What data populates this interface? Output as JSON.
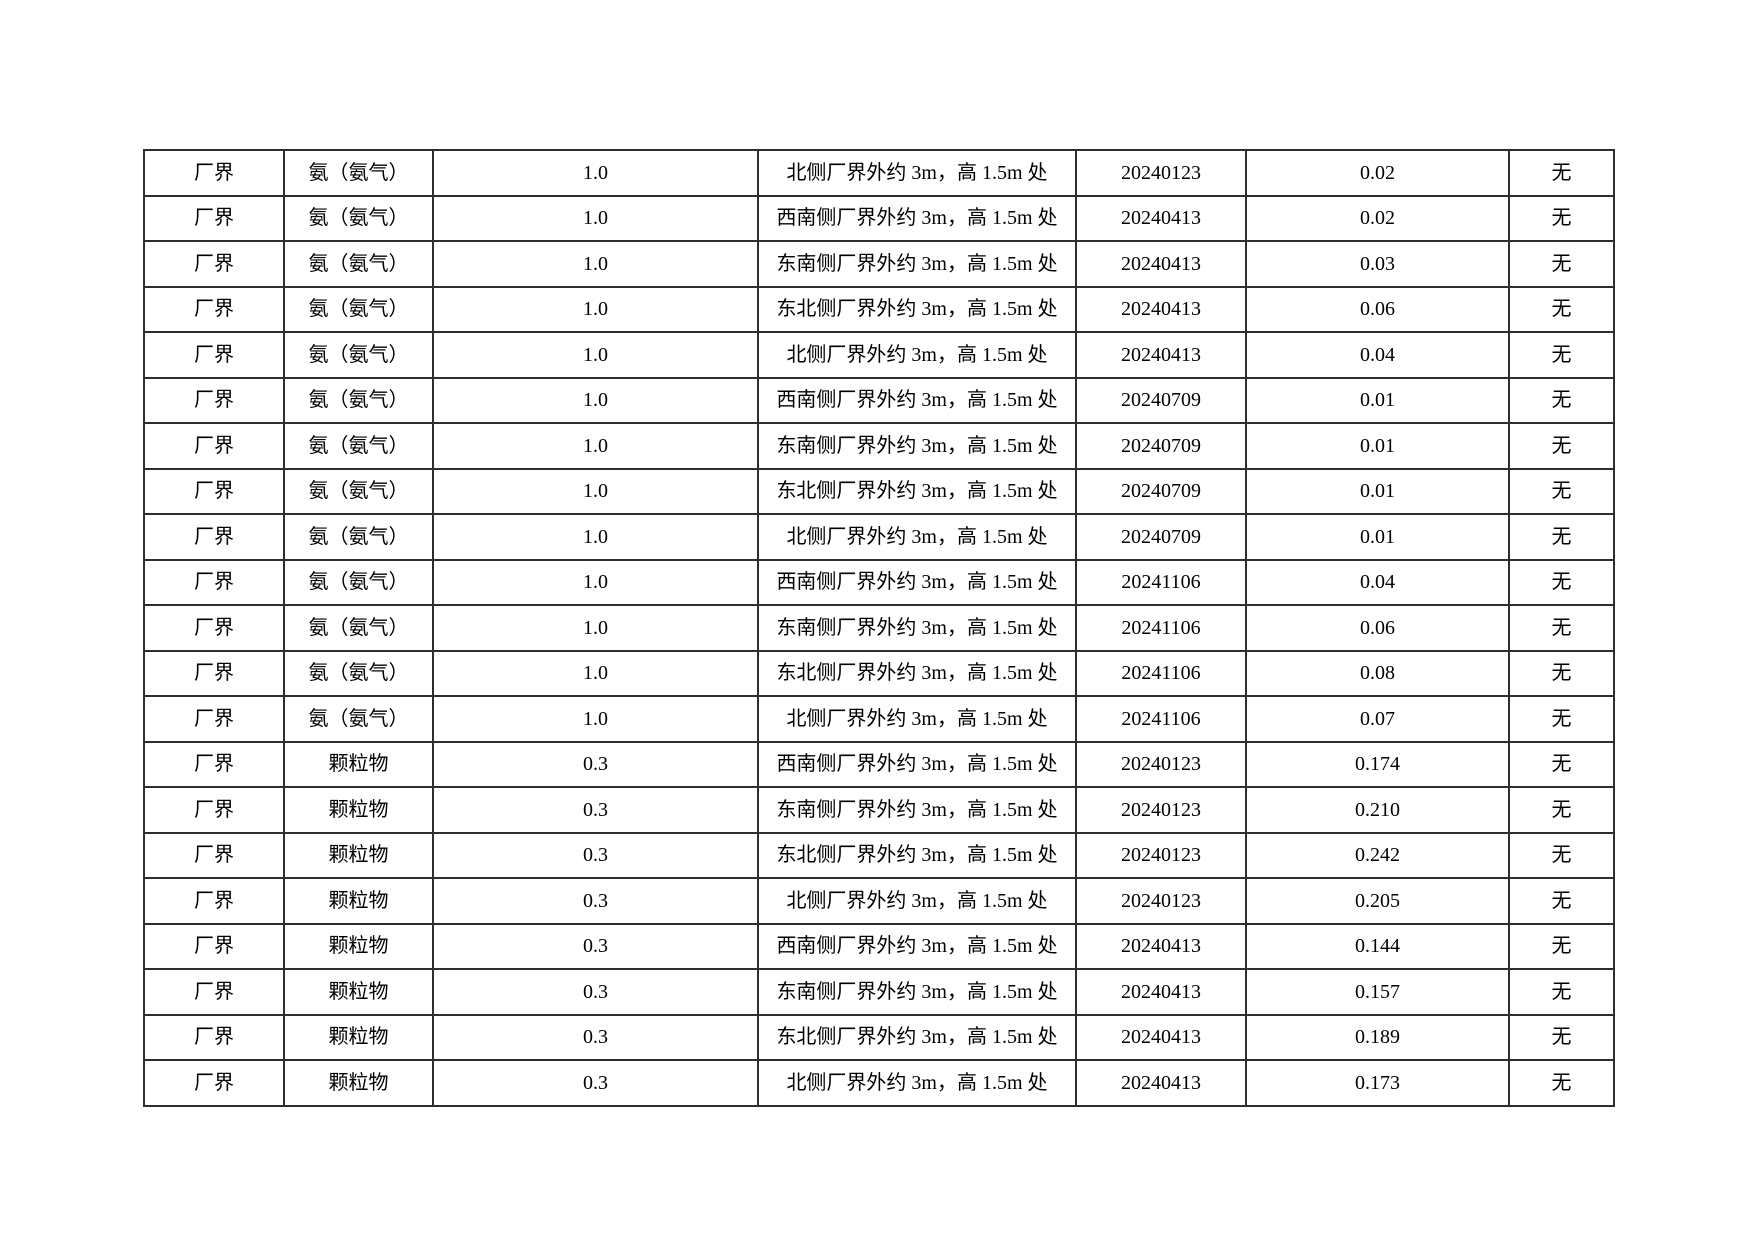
{
  "page": {
    "background_color": "#ffffff"
  },
  "table": {
    "border_color": "#2e2e2e",
    "text_color": "#000000",
    "rows": [
      [
        "厂界",
        "氨（氨气）",
        "1.0",
        "北侧厂界外约 3m，高 1.5m 处",
        "20240123",
        "0.02",
        "无"
      ],
      [
        "厂界",
        "氨（氨气）",
        "1.0",
        "西南侧厂界外约 3m，高 1.5m 处",
        "20240413",
        "0.02",
        "无"
      ],
      [
        "厂界",
        "氨（氨气）",
        "1.0",
        "东南侧厂界外约 3m，高 1.5m 处",
        "20240413",
        "0.03",
        "无"
      ],
      [
        "厂界",
        "氨（氨气）",
        "1.0",
        "东北侧厂界外约 3m，高 1.5m 处",
        "20240413",
        "0.06",
        "无"
      ],
      [
        "厂界",
        "氨（氨气）",
        "1.0",
        "北侧厂界外约 3m，高 1.5m 处",
        "20240413",
        "0.04",
        "无"
      ],
      [
        "厂界",
        "氨（氨气）",
        "1.0",
        "西南侧厂界外约 3m，高 1.5m 处",
        "20240709",
        "0.01",
        "无"
      ],
      [
        "厂界",
        "氨（氨气）",
        "1.0",
        "东南侧厂界外约 3m，高 1.5m 处",
        "20240709",
        "0.01",
        "无"
      ],
      [
        "厂界",
        "氨（氨气）",
        "1.0",
        "东北侧厂界外约 3m，高 1.5m 处",
        "20240709",
        "0.01",
        "无"
      ],
      [
        "厂界",
        "氨（氨气）",
        "1.0",
        "北侧厂界外约 3m，高 1.5m 处",
        "20240709",
        "0.01",
        "无"
      ],
      [
        "厂界",
        "氨（氨气）",
        "1.0",
        "西南侧厂界外约 3m，高 1.5m 处",
        "20241106",
        "0.04",
        "无"
      ],
      [
        "厂界",
        "氨（氨气）",
        "1.0",
        "东南侧厂界外约 3m，高 1.5m 处",
        "20241106",
        "0.06",
        "无"
      ],
      [
        "厂界",
        "氨（氨气）",
        "1.0",
        "东北侧厂界外约 3m，高 1.5m 处",
        "20241106",
        "0.08",
        "无"
      ],
      [
        "厂界",
        "氨（氨气）",
        "1.0",
        "北侧厂界外约 3m，高 1.5m 处",
        "20241106",
        "0.07",
        "无"
      ],
      [
        "厂界",
        "颗粒物",
        "0.3",
        "西南侧厂界外约 3m，高 1.5m 处",
        "20240123",
        "0.174",
        "无"
      ],
      [
        "厂界",
        "颗粒物",
        "0.3",
        "东南侧厂界外约 3m，高 1.5m 处",
        "20240123",
        "0.210",
        "无"
      ],
      [
        "厂界",
        "颗粒物",
        "0.3",
        "东北侧厂界外约 3m，高 1.5m 处",
        "20240123",
        "0.242",
        "无"
      ],
      [
        "厂界",
        "颗粒物",
        "0.3",
        "北侧厂界外约 3m，高 1.5m 处",
        "20240123",
        "0.205",
        "无"
      ],
      [
        "厂界",
        "颗粒物",
        "0.3",
        "西南侧厂界外约 3m，高 1.5m 处",
        "20240413",
        "0.144",
        "无"
      ],
      [
        "厂界",
        "颗粒物",
        "0.3",
        "东南侧厂界外约 3m，高 1.5m 处",
        "20240413",
        "0.157",
        "无"
      ],
      [
        "厂界",
        "颗粒物",
        "0.3",
        "东北侧厂界外约 3m，高 1.5m 处",
        "20240413",
        "0.189",
        "无"
      ],
      [
        "厂界",
        "颗粒物",
        "0.3",
        "北侧厂界外约 3m，高 1.5m 处",
        "20240413",
        "0.173",
        "无"
      ]
    ]
  }
}
